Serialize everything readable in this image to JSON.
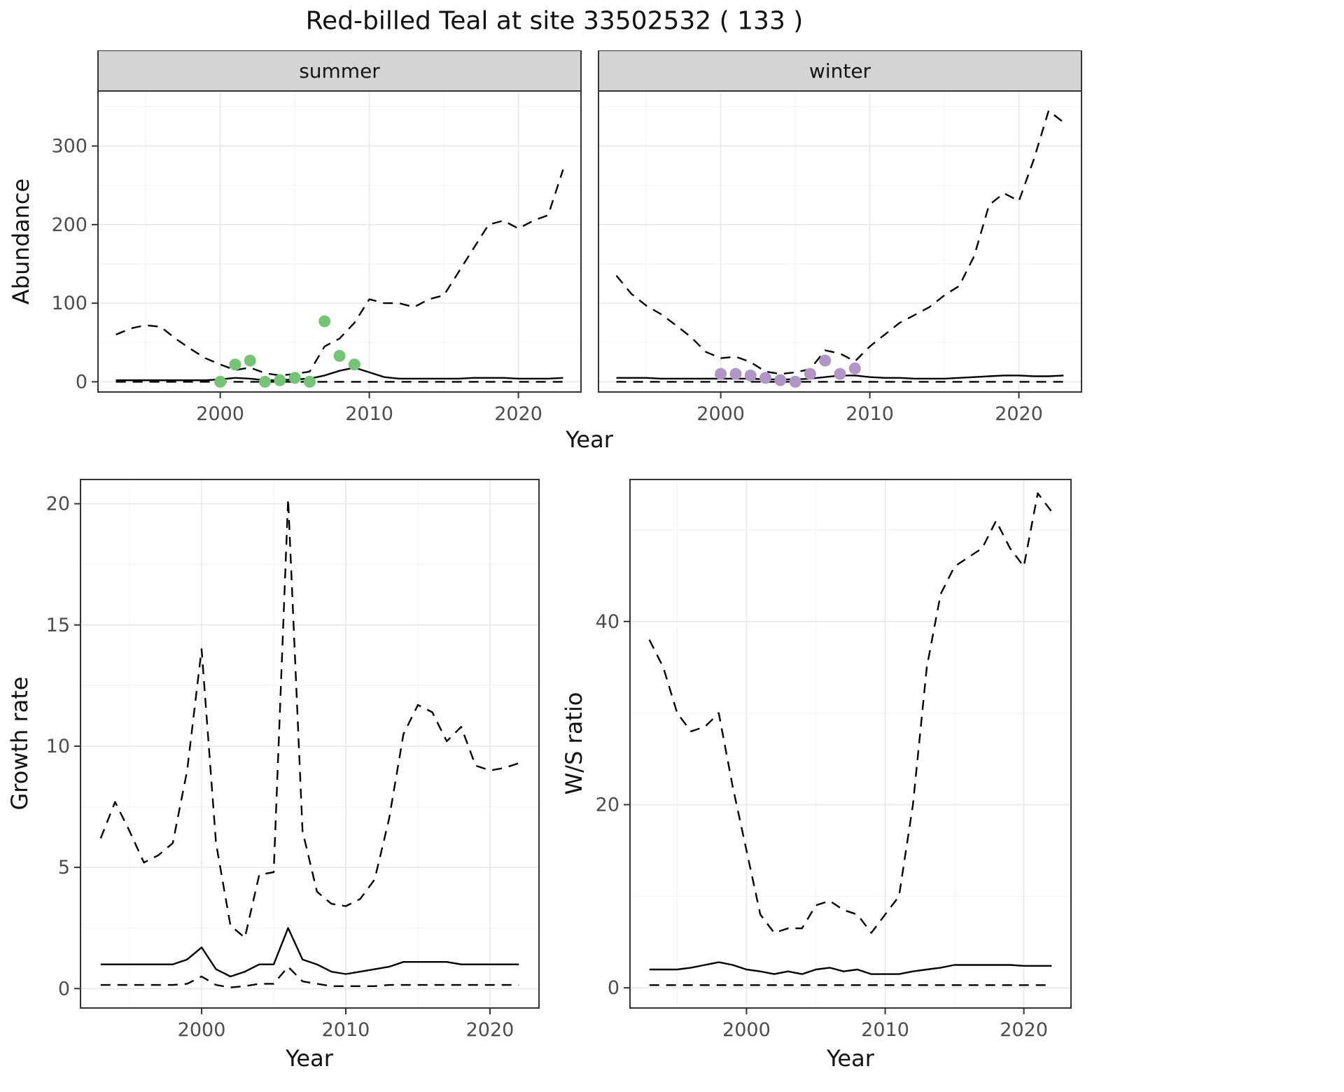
{
  "title": "Red-billed Teal at site 33502532 ( 133 )",
  "colors": {
    "line": "#000000",
    "strip_bg": "#d4d4d4",
    "panel_border": "#333333",
    "grid_major": "#e8e8e8",
    "grid_minor": "#f4f4f4",
    "axis_text": "#4d4d4d",
    "text": "#1a1a1a",
    "summer_points": "#74c476",
    "winter_points": "#b295c7"
  },
  "chart_data": [
    {
      "type": "line",
      "facet_label": "summer",
      "xlabel": "Year",
      "ylabel": "Abundance",
      "xlim": [
        1991.8,
        2024.2
      ],
      "ylim": [
        -13,
        370
      ],
      "xticks": [
        2000,
        2010,
        2020
      ],
      "yticks": [
        0,
        100,
        200,
        300
      ],
      "x": [
        1993,
        1994,
        1995,
        1996,
        1997,
        1998,
        1999,
        2000,
        2001,
        2002,
        2003,
        2004,
        2005,
        2006,
        2007,
        2008,
        2009,
        2010,
        2011,
        2012,
        2013,
        2014,
        2015,
        2016,
        2017,
        2018,
        2019,
        2020,
        2021,
        2022,
        2023
      ],
      "series": [
        {
          "name": "upper-95-credible",
          "style": "dashed",
          "values": [
            60,
            68,
            72,
            70,
            55,
            42,
            30,
            22,
            15,
            18,
            11,
            8,
            10,
            13,
            45,
            55,
            75,
            105,
            100,
            100,
            95,
            105,
            110,
            140,
            170,
            200,
            205,
            195,
            205,
            212,
            270
          ]
        },
        {
          "name": "median",
          "style": "solid",
          "values": [
            2,
            2,
            2,
            2,
            2,
            2,
            2,
            3,
            5,
            4,
            2,
            2,
            3,
            4,
            8,
            14,
            18,
            12,
            6,
            4,
            4,
            4,
            4,
            4,
            5,
            5,
            5,
            4,
            4,
            4,
            5
          ]
        },
        {
          "name": "lower-95-credible",
          "style": "dashed",
          "values": [
            0,
            0,
            0,
            0,
            0,
            0,
            0,
            0,
            0,
            0,
            0,
            0,
            0,
            0,
            0,
            0,
            0,
            0,
            0,
            0,
            0,
            0,
            0,
            0,
            0,
            0,
            0,
            0,
            0,
            0,
            0
          ]
        }
      ],
      "points": {
        "name": "observed-summer-count",
        "color": "#74c476",
        "x": [
          2000,
          2001,
          2002,
          2003,
          2004,
          2005,
          2006,
          2007,
          2008,
          2009
        ],
        "y": [
          0,
          22,
          27,
          0,
          2,
          5,
          0,
          77,
          33,
          22
        ]
      }
    },
    {
      "type": "line",
      "facet_label": "winter",
      "xlabel": "Year",
      "ylabel": "Abundance",
      "xlim": [
        1991.8,
        2024.2
      ],
      "ylim": [
        -13,
        370
      ],
      "xticks": [
        2000,
        2010,
        2020
      ],
      "yticks": [
        0,
        100,
        200,
        300
      ],
      "x": [
        1993,
        1994,
        1995,
        1996,
        1997,
        1998,
        1999,
        2000,
        2001,
        2002,
        2003,
        2004,
        2005,
        2006,
        2007,
        2008,
        2009,
        2010,
        2011,
        2012,
        2013,
        2014,
        2015,
        2016,
        2017,
        2018,
        2019,
        2020,
        2021,
        2022,
        2023
      ],
      "series": [
        {
          "name": "upper-95-credible",
          "style": "dashed",
          "values": [
            135,
            112,
            97,
            86,
            72,
            57,
            38,
            30,
            32,
            25,
            13,
            10,
            12,
            16,
            40,
            36,
            26,
            45,
            60,
            75,
            85,
            95,
            110,
            122,
            160,
            225,
            240,
            230,
            283,
            345,
            330
          ]
        },
        {
          "name": "median",
          "style": "solid",
          "values": [
            5,
            5,
            5,
            4,
            4,
            4,
            4,
            4,
            4,
            4,
            3,
            3,
            3,
            4,
            6,
            8,
            8,
            6,
            5,
            5,
            4,
            4,
            4,
            5,
            6,
            7,
            8,
            8,
            7,
            7,
            8
          ]
        },
        {
          "name": "lower-95-credible",
          "style": "dashed",
          "values": [
            0,
            0,
            0,
            0,
            0,
            0,
            0,
            0,
            0,
            0,
            0,
            0,
            0,
            0,
            0,
            0,
            0,
            0,
            0,
            0,
            0,
            0,
            0,
            0,
            0,
            0,
            0,
            0,
            0,
            0,
            0
          ]
        }
      ],
      "points": {
        "name": "observed-winter-count",
        "color": "#b295c7",
        "x": [
          2000,
          2001,
          2002,
          2003,
          2004,
          2005,
          2006,
          2007,
          2008,
          2009
        ],
        "y": [
          10,
          10,
          8,
          5,
          2,
          0,
          10,
          27,
          10,
          17
        ]
      }
    },
    {
      "type": "line",
      "facet_label": "",
      "xlabel": "Year",
      "ylabel": "Growth rate",
      "xlim": [
        1991.6,
        2023.4
      ],
      "ylim": [
        -0.8,
        21
      ],
      "xticks": [
        2000,
        2010,
        2020
      ],
      "yticks": [
        0,
        5,
        10,
        15,
        20
      ],
      "x": [
        1993,
        1994,
        1995,
        1996,
        1997,
        1998,
        1999,
        2000,
        2001,
        2002,
        2003,
        2004,
        2005,
        2006,
        2007,
        2008,
        2009,
        2010,
        2011,
        2012,
        2013,
        2014,
        2015,
        2016,
        2017,
        2018,
        2019,
        2020,
        2021,
        2022
      ],
      "series": [
        {
          "name": "upper-95-credible",
          "style": "dashed",
          "values": [
            6.2,
            7.7,
            6.5,
            5.2,
            5.5,
            6.0,
            9.0,
            14.0,
            6.0,
            2.6,
            2.1,
            4.7,
            4.8,
            20.2,
            6.5,
            4.0,
            3.5,
            3.4,
            3.7,
            4.5,
            7.0,
            10.5,
            11.7,
            11.4,
            10.2,
            10.8,
            9.2,
            9.0,
            9.1,
            9.3
          ]
        },
        {
          "name": "median",
          "style": "solid",
          "values": [
            1.0,
            1.0,
            1.0,
            1.0,
            1.0,
            1.0,
            1.2,
            1.7,
            0.8,
            0.5,
            0.7,
            1.0,
            1.0,
            2.5,
            1.2,
            1.0,
            0.7,
            0.6,
            0.7,
            0.8,
            0.9,
            1.1,
            1.1,
            1.1,
            1.1,
            1.0,
            1.0,
            1.0,
            1.0,
            1.0
          ]
        },
        {
          "name": "lower-95-credible",
          "style": "dashed",
          "values": [
            0.15,
            0.15,
            0.15,
            0.15,
            0.15,
            0.15,
            0.2,
            0.5,
            0.15,
            0.05,
            0.1,
            0.2,
            0.2,
            0.9,
            0.3,
            0.2,
            0.1,
            0.1,
            0.1,
            0.1,
            0.15,
            0.15,
            0.15,
            0.15,
            0.15,
            0.15,
            0.15,
            0.15,
            0.15,
            0.15
          ]
        }
      ],
      "points": null
    },
    {
      "type": "line",
      "facet_label": "",
      "xlabel": "Year",
      "ylabel": "W/S ratio",
      "xlim": [
        1991.6,
        2023.4
      ],
      "ylim": [
        -2.2,
        55.5
      ],
      "xticks": [
        2000,
        2010,
        2020
      ],
      "yticks": [
        0,
        20,
        40
      ],
      "x": [
        1993,
        1994,
        1995,
        1996,
        1997,
        1998,
        1999,
        2000,
        2001,
        2002,
        2003,
        2004,
        2005,
        2006,
        2007,
        2008,
        2009,
        2010,
        2011,
        2012,
        2013,
        2014,
        2015,
        2016,
        2017,
        2018,
        2019,
        2020,
        2021,
        2022
      ],
      "series": [
        {
          "name": "upper-95-credible",
          "style": "dashed",
          "values": [
            38,
            35,
            30,
            28,
            28.5,
            30,
            22,
            15,
            8,
            6,
            6.5,
            6.5,
            9,
            9.5,
            8.5,
            8,
            6,
            8,
            10,
            20,
            35,
            43,
            46,
            47,
            48,
            51,
            48,
            46,
            54,
            52
          ]
        },
        {
          "name": "median",
          "style": "solid",
          "values": [
            2,
            2,
            2,
            2.2,
            2.5,
            2.8,
            2.5,
            2,
            1.8,
            1.5,
            1.8,
            1.5,
            2,
            2.2,
            1.8,
            2,
            1.5,
            1.5,
            1.5,
            1.8,
            2,
            2.2,
            2.5,
            2.5,
            2.5,
            2.5,
            2.5,
            2.4,
            2.4,
            2.4
          ]
        },
        {
          "name": "lower-95-credible",
          "style": "dashed",
          "values": [
            0.3,
            0.3,
            0.3,
            0.3,
            0.3,
            0.3,
            0.3,
            0.3,
            0.3,
            0.3,
            0.3,
            0.3,
            0.3,
            0.3,
            0.3,
            0.3,
            0.3,
            0.3,
            0.3,
            0.3,
            0.3,
            0.3,
            0.3,
            0.3,
            0.3,
            0.3,
            0.3,
            0.3,
            0.3,
            0.3
          ]
        }
      ],
      "points": null
    }
  ]
}
